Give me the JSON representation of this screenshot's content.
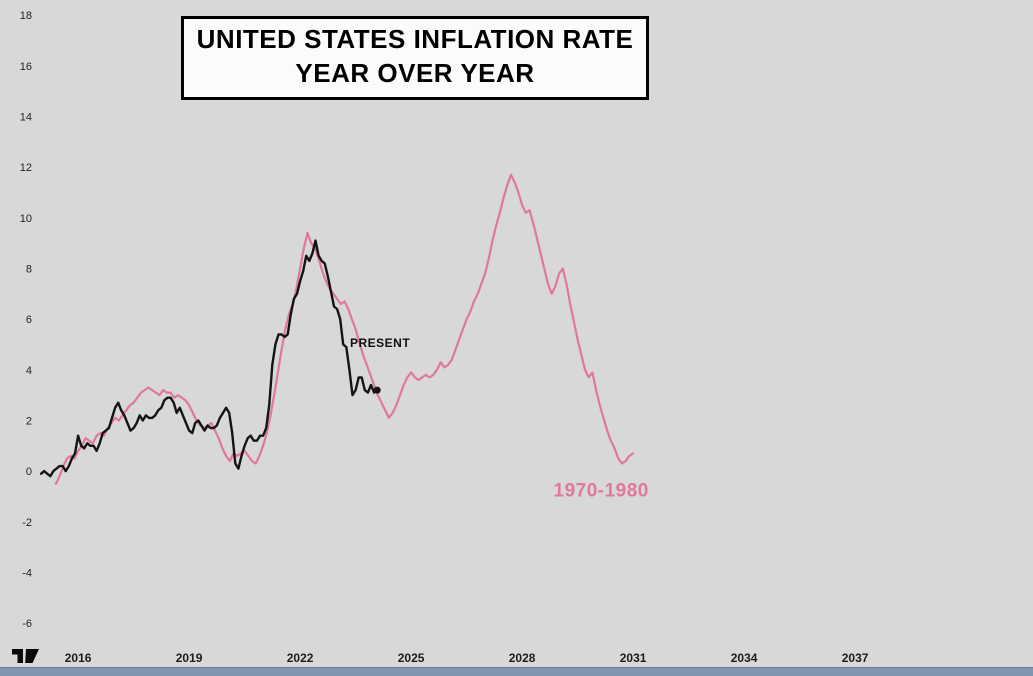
{
  "page": {
    "background": "#d8d8d8",
    "bottom_bar_color": "#8094ae"
  },
  "title": {
    "line1": "UNITED STATES INFLATION RATE",
    "line2": "YEAR OVER YEAR"
  },
  "logo": {
    "name": "TradingView"
  },
  "chart_data": {
    "type": "line",
    "title": "UNITED STATES INFLATION RATE YEAR OVER YEAR",
    "xlabel": "",
    "ylabel": "",
    "grid": false,
    "x_axis": {
      "ticks": [
        2016,
        2019,
        2022,
        2025,
        2028,
        2031,
        2034,
        2037
      ]
    },
    "y_axis": {
      "ticks": [
        18,
        16,
        14,
        12,
        10,
        8,
        6,
        4,
        2,
        0,
        -2,
        -4,
        -6
      ]
    },
    "annotations": [
      {
        "name": "present-label",
        "text": "PRESENT",
        "x": 2023.35,
        "y": 4.9,
        "color": "#111111",
        "size": 12
      },
      {
        "name": "era-1970-1980-label",
        "text": "1970-1980",
        "x": 2028.85,
        "y": -1.0,
        "color": "#e0789c",
        "size": 19
      }
    ],
    "series": [
      {
        "name": "1970-1980",
        "color": "#e0789c",
        "line_width": 2.2,
        "end_dot": false,
        "start_x": 2015.4,
        "x_step": 0.1,
        "values": [
          -0.5,
          -0.2,
          0.2,
          0.5,
          0.6,
          0.5,
          0.8,
          1.0,
          1.3,
          1.2,
          1.1,
          1.4,
          1.5,
          1.4,
          1.7,
          1.9,
          2.1,
          2.0,
          2.2,
          2.4,
          2.6,
          2.7,
          2.9,
          3.1,
          3.2,
          3.3,
          3.2,
          3.1,
          3.0,
          3.2,
          3.1,
          3.1,
          2.9,
          3.0,
          2.9,
          2.8,
          2.6,
          2.3,
          2.0,
          1.8,
          1.7,
          1.8,
          1.9,
          1.6,
          1.3,
          0.9,
          0.6,
          0.4,
          0.7,
          0.6,
          0.7,
          0.8,
          0.6,
          0.4,
          0.3,
          0.6,
          1.0,
          1.5,
          2.2,
          3.0,
          3.9,
          4.8,
          5.6,
          6.2,
          6.6,
          7.2,
          8.0,
          8.8,
          9.4,
          9.0,
          8.8,
          8.4,
          7.9,
          7.5,
          7.2,
          7.0,
          6.8,
          6.6,
          6.7,
          6.4,
          6.0,
          5.6,
          5.1,
          4.6,
          4.2,
          3.8,
          3.4,
          3.0,
          2.7,
          2.4,
          2.1,
          2.3,
          2.6,
          3.0,
          3.4,
          3.7,
          3.9,
          3.7,
          3.6,
          3.7,
          3.8,
          3.7,
          3.8,
          4.0,
          4.3,
          4.1,
          4.2,
          4.4,
          4.8,
          5.2,
          5.6,
          6.0,
          6.3,
          6.7,
          7.0,
          7.4,
          7.8,
          8.4,
          9.1,
          9.7,
          10.2,
          10.8,
          11.3,
          11.7,
          11.4,
          11.0,
          10.5,
          10.2,
          10.3,
          9.8,
          9.2,
          8.6,
          8.0,
          7.4,
          7.0,
          7.3,
          7.8,
          8.0,
          7.4,
          6.6,
          5.9,
          5.2,
          4.6,
          4.0,
          3.7,
          3.9,
          3.2,
          2.6,
          2.1,
          1.6,
          1.2,
          0.9,
          0.5,
          0.3,
          0.4,
          0.6,
          0.7
        ]
      },
      {
        "name": "PRESENT",
        "color": "#141414",
        "line_width": 2.4,
        "end_dot": true,
        "start_x": 2015.0,
        "x_step": 0.083333,
        "values": [
          -0.1,
          0.0,
          -0.1,
          -0.2,
          0.0,
          0.1,
          0.2,
          0.2,
          0.0,
          0.2,
          0.5,
          0.7,
          1.4,
          1.0,
          0.9,
          1.1,
          1.0,
          1.0,
          0.8,
          1.1,
          1.5,
          1.6,
          1.7,
          2.1,
          2.5,
          2.7,
          2.4,
          2.2,
          1.9,
          1.6,
          1.7,
          1.9,
          2.2,
          2.0,
          2.2,
          2.1,
          2.1,
          2.2,
          2.4,
          2.5,
          2.8,
          2.9,
          2.9,
          2.7,
          2.3,
          2.5,
          2.2,
          1.9,
          1.6,
          1.5,
          1.9,
          2.0,
          1.8,
          1.6,
          1.8,
          1.7,
          1.7,
          1.8,
          2.1,
          2.3,
          2.5,
          2.3,
          1.5,
          0.3,
          0.1,
          0.6,
          1.0,
          1.3,
          1.4,
          1.2,
          1.2,
          1.4,
          1.4,
          1.7,
          2.6,
          4.2,
          5.0,
          5.4,
          5.4,
          5.3,
          5.4,
          6.2,
          6.8,
          7.0,
          7.5,
          7.9,
          8.5,
          8.3,
          8.6,
          9.1,
          8.5,
          8.3,
          8.2,
          7.7,
          7.1,
          6.5,
          6.4,
          6.0,
          5.0,
          4.9,
          4.0,
          3.0,
          3.2,
          3.7,
          3.7,
          3.2,
          3.1,
          3.4,
          3.1,
          3.2
        ]
      }
    ]
  }
}
